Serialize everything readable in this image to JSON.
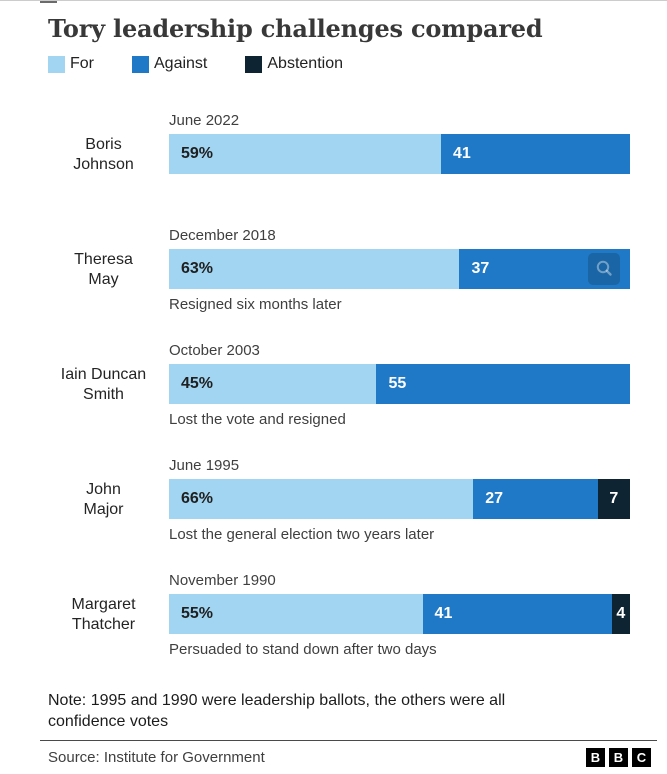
{
  "title": "Tory leadership challenges compared",
  "legend": [
    {
      "key": "for",
      "label": "For",
      "color": "#a1d5f2"
    },
    {
      "key": "against",
      "label": "Against",
      "color": "#1f79c6"
    },
    {
      "key": "abstention",
      "label": "Abstention",
      "color": "#0e2433"
    }
  ],
  "chart_data": {
    "type": "bar",
    "orientation": "horizontal",
    "stacked": true,
    "unit": "%",
    "xlim": [
      0,
      100
    ],
    "title": "Tory leadership challenges compared",
    "series_names": [
      "For",
      "Against",
      "Abstention"
    ],
    "rows": [
      {
        "name": "Boris Johnson",
        "name_lines": "Boris\nJohnson",
        "date": "June 2022",
        "for": 59,
        "against": 41,
        "abstention": null,
        "for_label": "59%",
        "against_label": "41",
        "abstention_label": null,
        "caption": "",
        "magnifier": false
      },
      {
        "name": "Theresa May",
        "name_lines": "Theresa\nMay",
        "date": "December 2018",
        "for": 63,
        "against": 37,
        "abstention": null,
        "for_label": "63%",
        "against_label": "37",
        "abstention_label": null,
        "caption": "Resigned six months later",
        "magnifier": true
      },
      {
        "name": "Iain Duncan Smith",
        "name_lines": "Iain Duncan\nSmith",
        "date": "October 2003",
        "for": 45,
        "against": 55,
        "abstention": null,
        "for_label": "45%",
        "against_label": "55",
        "abstention_label": null,
        "caption": "Lost the vote and resigned",
        "magnifier": false
      },
      {
        "name": "John Major",
        "name_lines": "John\nMajor",
        "date": "June 1995",
        "for": 66,
        "against": 27,
        "abstention": 7,
        "for_label": "66%",
        "against_label": "27",
        "abstention_label": "7",
        "caption": "Lost the general election two years later",
        "magnifier": false
      },
      {
        "name": "Margaret Thatcher",
        "name_lines": "Margaret\nThatcher",
        "date": "November 1990",
        "for": 55,
        "against": 41,
        "abstention": 4,
        "for_label": "55%",
        "against_label": "41",
        "abstention_label": "4",
        "caption": "Persuaded to stand down after two days",
        "magnifier": false
      }
    ]
  },
  "note": "Note: 1995 and 1990 were leadership ballots, the others were all confidence votes",
  "source": "Source: Institute for Government",
  "logo_letters": [
    "B",
    "B",
    "C"
  ]
}
